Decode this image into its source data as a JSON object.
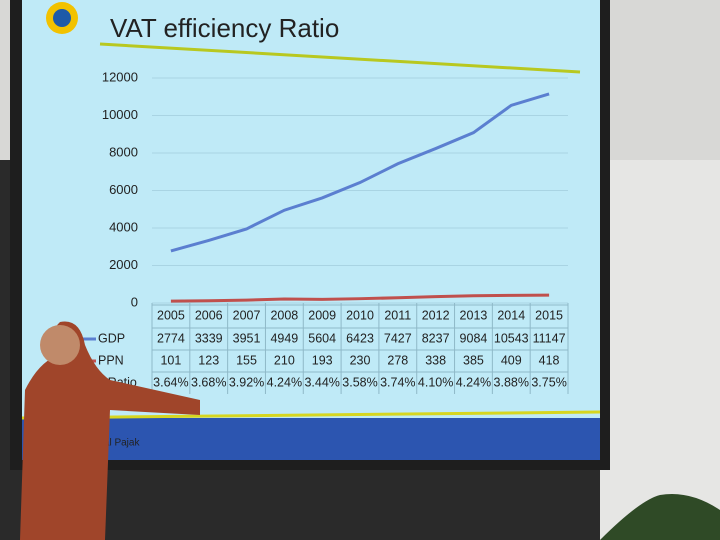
{
  "chart_data": {
    "type": "line",
    "title": "VAT efficiency Ratio",
    "categories": [
      "2005",
      "2006",
      "2007",
      "2008",
      "2009",
      "2010",
      "2011",
      "2012",
      "2013",
      "2014",
      "2015"
    ],
    "series": [
      {
        "name": "GDP",
        "color": "#5b7fd0",
        "values": [
          2774,
          3339,
          3951,
          4949,
          5604,
          6423,
          7427,
          8237,
          9084,
          10543,
          11147
        ]
      },
      {
        "name": "PPN",
        "color": "#c0504d",
        "values": [
          101,
          123,
          155,
          210,
          193,
          230,
          278,
          338,
          385,
          409,
          418
        ]
      }
    ],
    "ratio": {
      "name": "VAT Ratio",
      "values": [
        3.64,
        3.68,
        3.92,
        4.24,
        3.44,
        3.58,
        3.74,
        4.1,
        4.24,
        3.88,
        3.75
      ],
      "value_labels": [
        "3.64%",
        "3.68%",
        "3.92%",
        "4.24%",
        "3.44%",
        "3.58%",
        "3.74%",
        "4.10%",
        "4.24%",
        "3.88%",
        "3.75%"
      ]
    },
    "ylim": [
      0,
      12000
    ],
    "yticks": [
      0,
      2000,
      4000,
      6000,
      8000,
      10000,
      12000
    ],
    "grid": true,
    "footer": "eral Pajak"
  }
}
